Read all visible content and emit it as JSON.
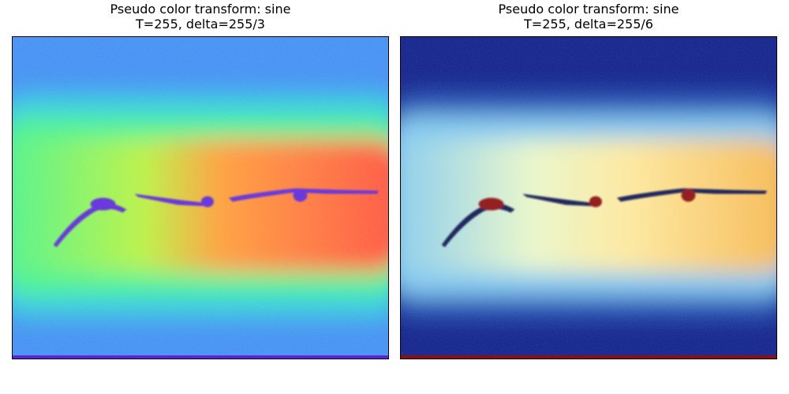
{
  "panels": [
    {
      "title_line1": "Pseudo color transform: sine",
      "title_line2": "T=255, delta=255/3",
      "colormap": "jet-like",
      "colors": {
        "background": "#3b8cf2",
        "band_outer": "#2ec9df",
        "band_mid": "#43f28a",
        "band_inner": "#b6f23c",
        "hot_left": "#ff9a35",
        "hot_right": "#ff4a3a",
        "crack": "#5a25d8",
        "bottom_edge": "#5a25d8"
      }
    },
    {
      "title_line1": "Pseudo color transform: sine",
      "title_line2": "T=255, delta=255/6",
      "colormap": "ocean-heat",
      "colors": {
        "background": "#0a1a86",
        "band_outer": "#1d52b4",
        "band_mid": "#7cc6ef",
        "band_inner": "#e8f6c8",
        "hot_left": "#fde79a",
        "hot_right": "#f5b44a",
        "crack": "#0a1450",
        "crack_core": "#8a1010",
        "bottom_edge": "#8a1010"
      }
    }
  ]
}
